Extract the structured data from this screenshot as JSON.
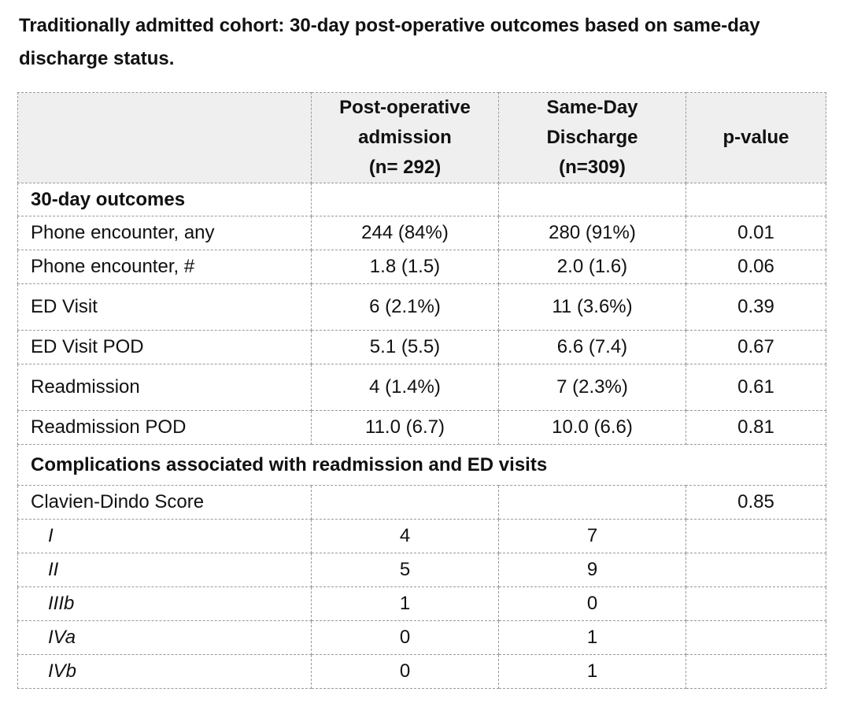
{
  "title": "Traditionally admitted cohort: 30-day post-operative outcomes based on same-day discharge status.",
  "columns": {
    "col1": "",
    "col2": [
      "Post-operative",
      "admission",
      "(n= 292)"
    ],
    "col3": [
      "Same-Day",
      "Discharge",
      "(n=309)"
    ],
    "col4": "p-value"
  },
  "rows": [
    {
      "type": "section",
      "label": "30-day outcomes"
    },
    {
      "type": "row",
      "label": "Phone encounter, any",
      "admit": "244 (84%)",
      "sdd": "280 (91%)",
      "p": "0.01"
    },
    {
      "type": "row",
      "label": "Phone encounter, #",
      "admit": "1.8 (1.5)",
      "sdd": "2.0 (1.6)",
      "p": "0.06"
    },
    {
      "type": "row",
      "label": "ED Visit",
      "admit": "6 (2.1%)",
      "sdd": "11 (3.6%)",
      "p": "0.39"
    },
    {
      "type": "row",
      "label": "ED Visit POD",
      "admit": "5.1 (5.5)",
      "sdd": "6.6 (7.4)",
      "p": "0.67"
    },
    {
      "type": "row",
      "label": "Readmission",
      "admit": "4 (1.4%)",
      "sdd": "7 (2.3%)",
      "p": "0.61"
    },
    {
      "type": "row",
      "label": "Readmission POD",
      "admit": "11.0 (6.7)",
      "sdd": "10.0 (6.6)",
      "p": "0.81"
    },
    {
      "type": "section-span",
      "label": "Complications associated with readmission and ED visits"
    },
    {
      "type": "row",
      "label": "Clavien-Dindo Score",
      "admit": "",
      "sdd": "",
      "p": "0.85"
    },
    {
      "type": "sub",
      "label": "I",
      "admit": "4",
      "sdd": "7",
      "p": ""
    },
    {
      "type": "sub",
      "label": "II",
      "admit": "5",
      "sdd": "9",
      "p": ""
    },
    {
      "type": "sub",
      "label": "IIIb",
      "admit": "1",
      "sdd": "0",
      "p": ""
    },
    {
      "type": "sub",
      "label": "IVa",
      "admit": "0",
      "sdd": "1",
      "p": ""
    },
    {
      "type": "sub",
      "label": "IVb",
      "admit": "0",
      "sdd": "1",
      "p": ""
    }
  ]
}
